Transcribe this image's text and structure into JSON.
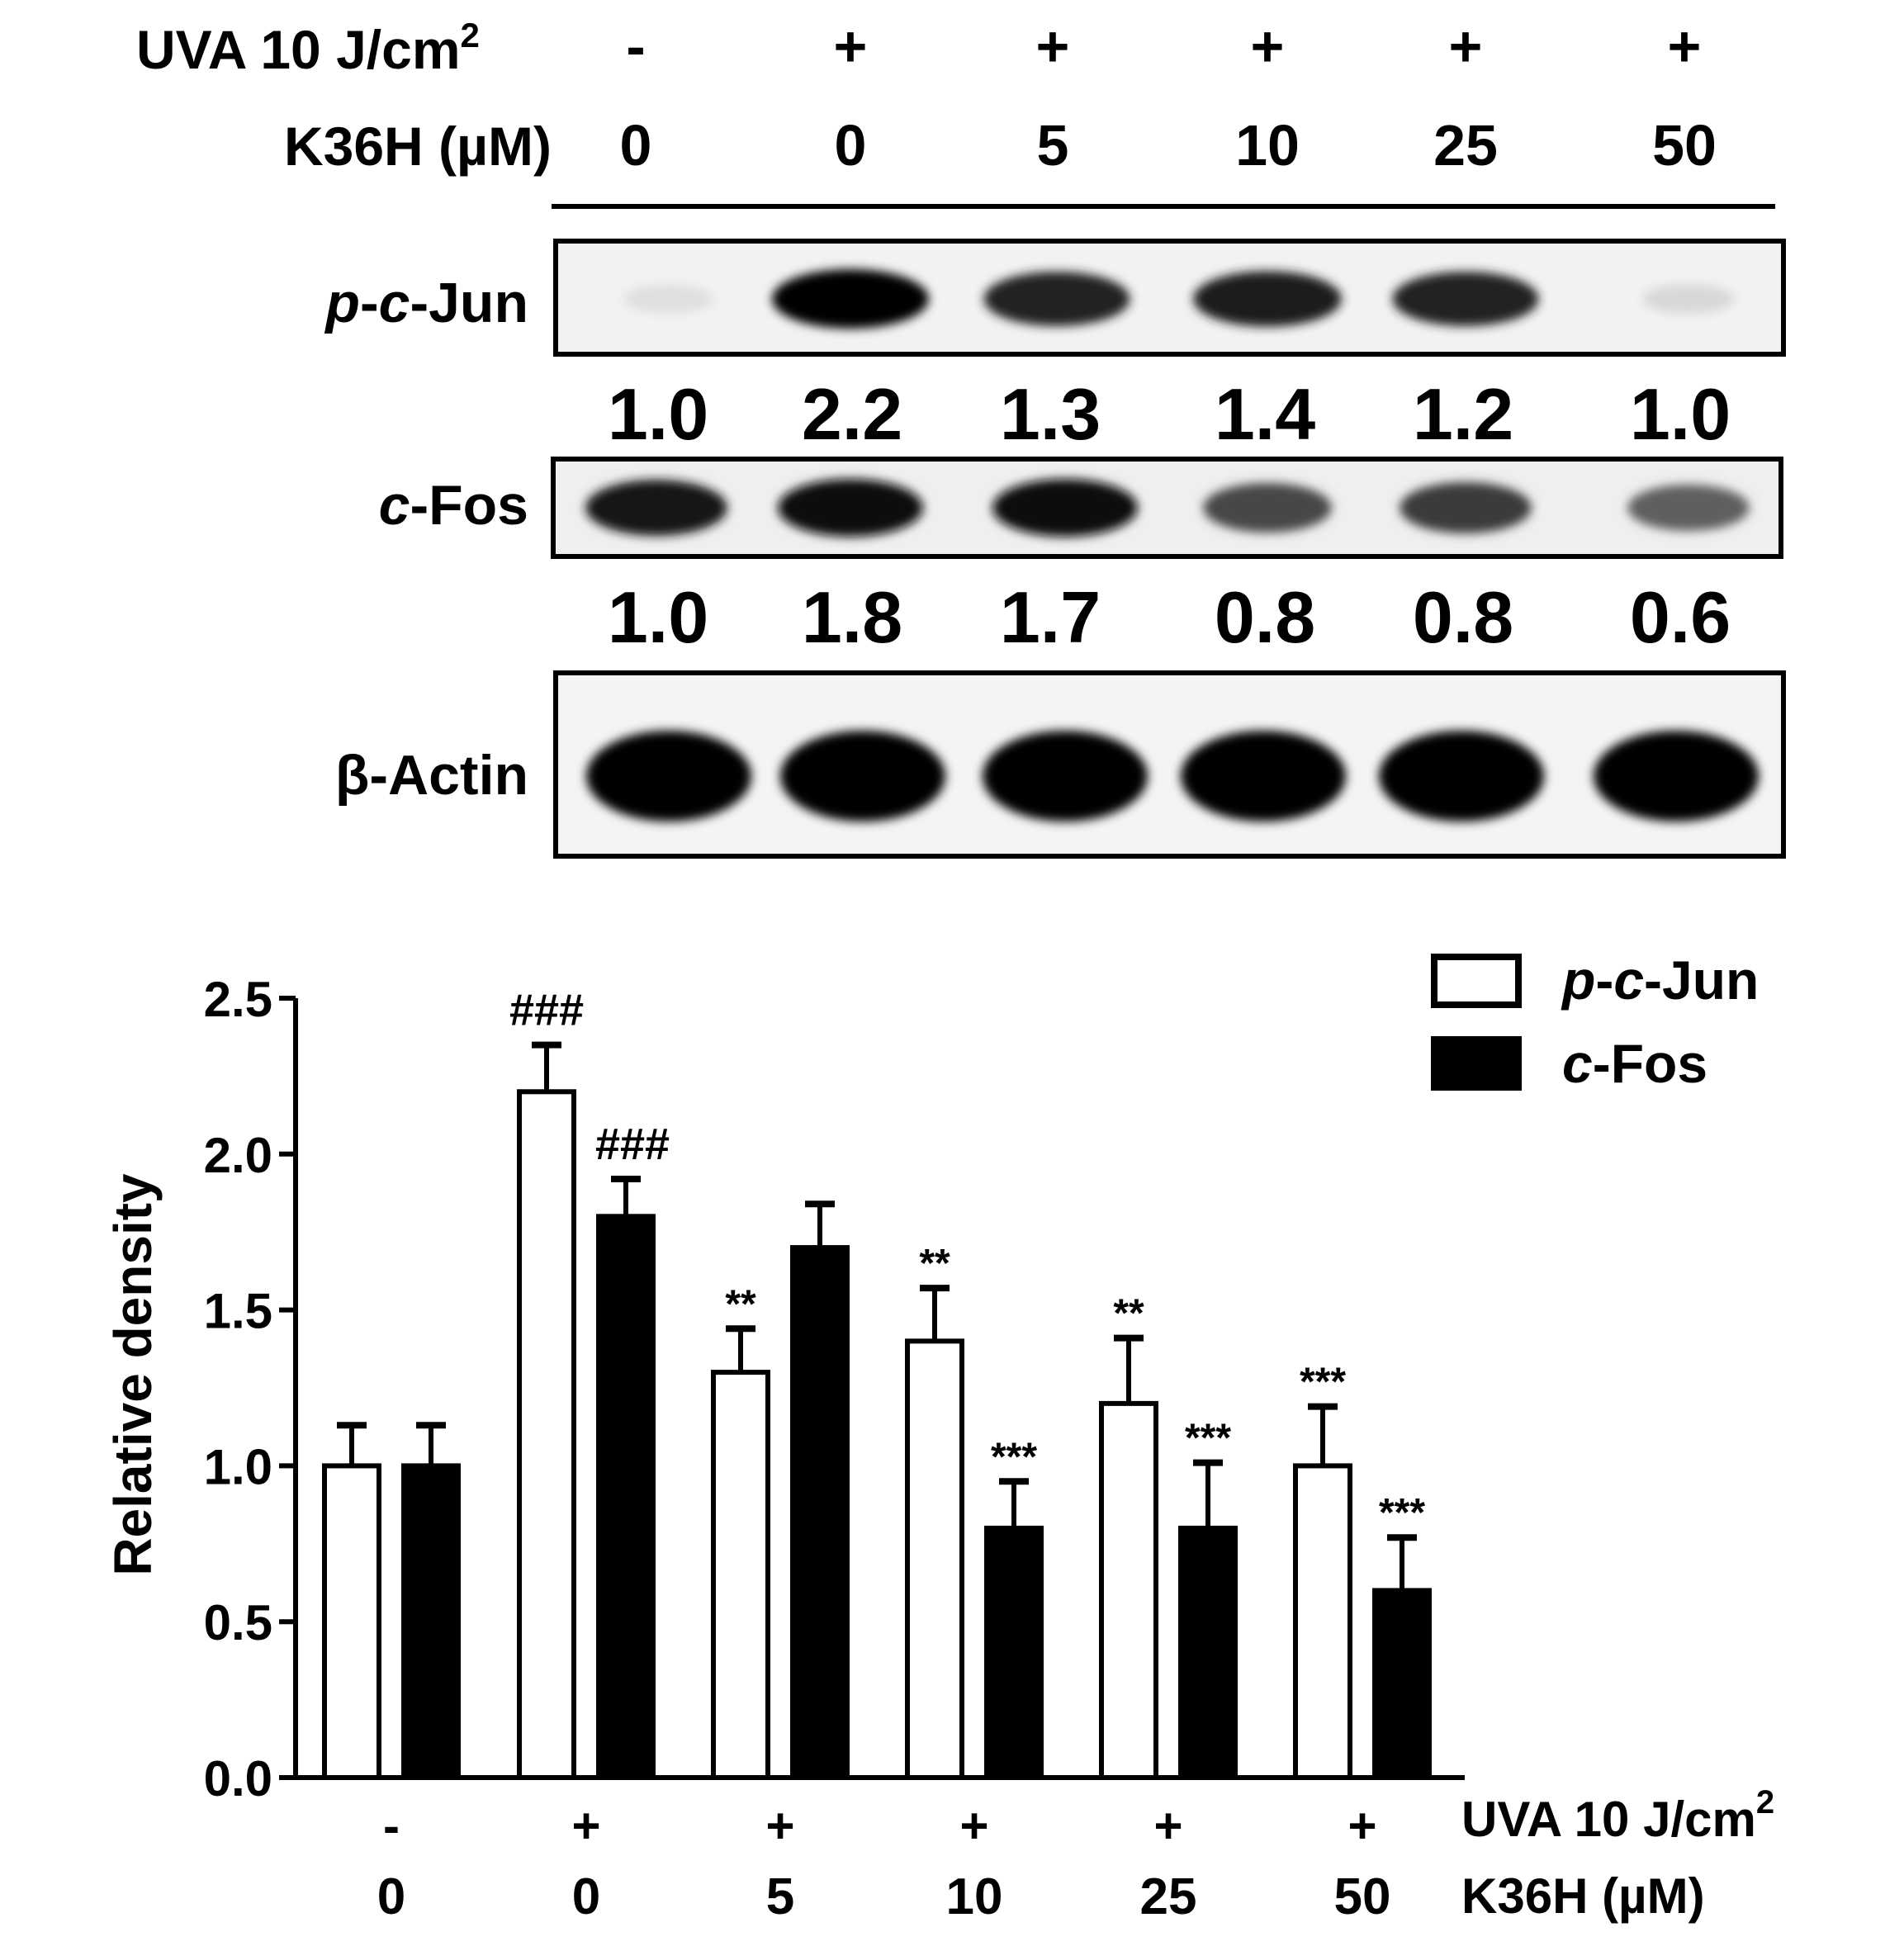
{
  "blot": {
    "uva_label": "UVA 10 J/cm",
    "uva_superscript": "2",
    "k36h_label": "K36H (µM)",
    "uva_signs": [
      "-",
      "+",
      "+",
      "+",
      "+",
      "+"
    ],
    "k36h_doses": [
      "0",
      "0",
      "5",
      "10",
      "25",
      "50"
    ],
    "rows": [
      {
        "label_prefix": "p",
        "label_mid": "c",
        "label_suffix": "-Jun",
        "ratios": [
          "1.0",
          "2.2",
          "1.3",
          "1.4",
          "1.2",
          "1.0"
        ],
        "band_intensity": [
          0.05,
          1.0,
          0.85,
          0.88,
          0.85,
          0.08
        ]
      },
      {
        "label_prefix": "",
        "label_mid": "c",
        "label_suffix": "-Fos",
        "ratios": [
          "1.0",
          "1.8",
          "1.7",
          "0.8",
          "0.8",
          "0.6"
        ],
        "band_intensity": [
          0.9,
          0.95,
          0.95,
          0.7,
          0.75,
          0.6
        ]
      },
      {
        "label_prefix": "",
        "label_mid": "",
        "label_suffix": "β-Actin",
        "ratios": [],
        "band_intensity": [
          1,
          1,
          1,
          1,
          1,
          1
        ]
      }
    ]
  },
  "chart_data": {
    "type": "bar",
    "ylabel": "Relative density",
    "ylim": [
      0,
      2.5
    ],
    "yticks": [
      "0.0",
      "0.5",
      "1.0",
      "1.5",
      "2.0",
      "2.5"
    ],
    "categories": [
      "0",
      "0",
      "5",
      "10",
      "25",
      "50"
    ],
    "uva_row": [
      "-",
      "+",
      "+",
      "+",
      "+",
      "+"
    ],
    "x_row_labels": {
      "uva": "UVA 10 J/cm",
      "uva_sup": "2",
      "k36h": "K36H (µM)"
    },
    "series": [
      {
        "name_prefix": "p",
        "name_mid": "c",
        "name_suffix": "-Jun",
        "fill": "white",
        "values": [
          1.0,
          2.2,
          1.3,
          1.4,
          1.2,
          1.0
        ],
        "errors": [
          0.13,
          0.15,
          0.14,
          0.17,
          0.21,
          0.19
        ],
        "annotations": [
          "",
          "###",
          "**",
          "**",
          "**",
          "***"
        ]
      },
      {
        "name_prefix": "",
        "name_mid": "c",
        "name_suffix": "-Fos",
        "fill": "black",
        "values": [
          1.0,
          1.8,
          1.7,
          0.8,
          0.8,
          0.6
        ],
        "errors": [
          0.13,
          0.12,
          0.14,
          0.15,
          0.21,
          0.17
        ],
        "annotations": [
          "",
          "###",
          "",
          "***",
          "***",
          "***"
        ]
      }
    ],
    "legend_position": "top-right"
  }
}
